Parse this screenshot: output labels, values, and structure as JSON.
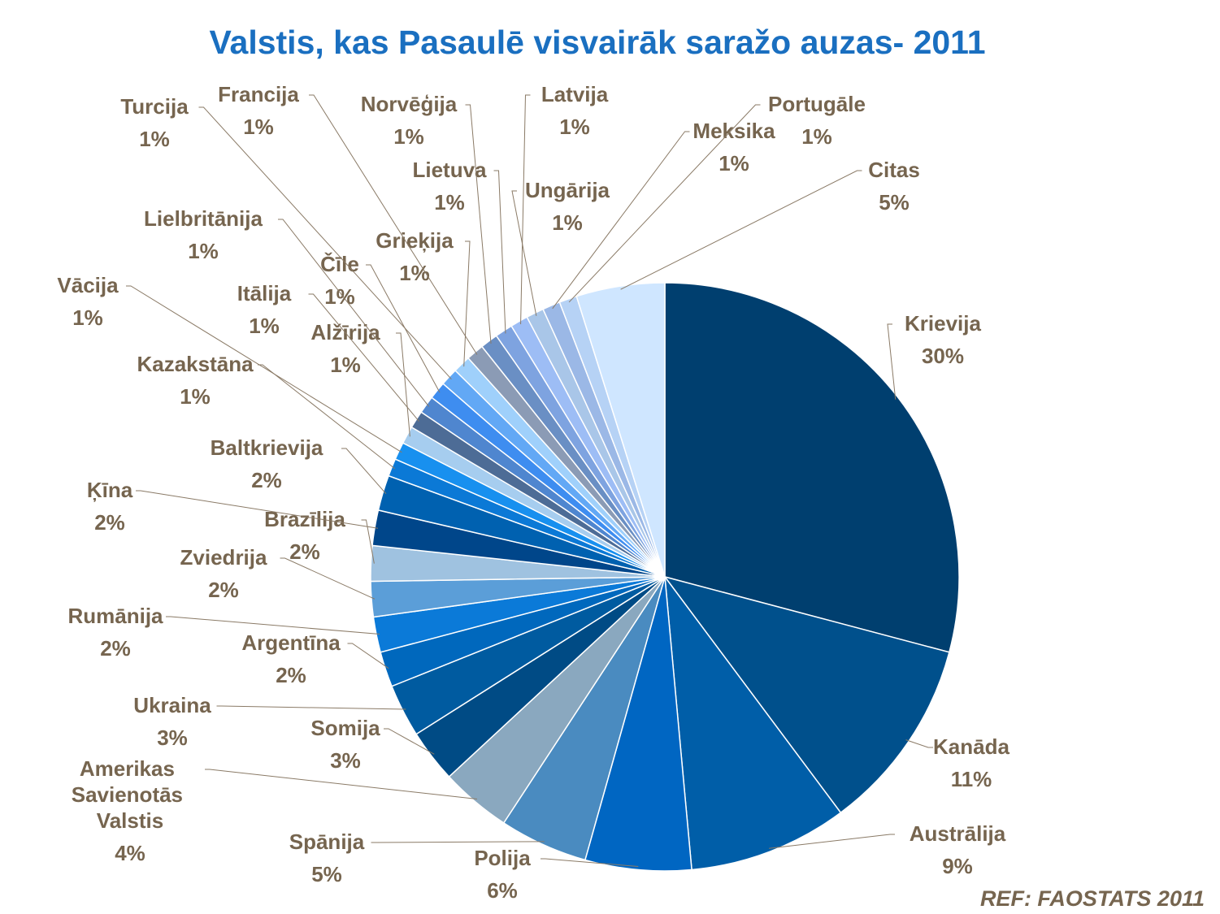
{
  "chart_data": {
    "type": "pie",
    "title": "Valstis, kas Pasaulē visvairāk saražo auzas- 2011",
    "source": "REF: FAOSTATS 2011",
    "categories": [
      "Krievija",
      "Kanāda",
      "Austrālija",
      "Polija",
      "Spānija",
      "Amerikas Savienotās Valstis",
      "Somija",
      "Ukraina",
      "Argentīna",
      "Rumānija",
      "Zviedrija",
      "Brazīlija",
      "Ķīna",
      "Baltkrievija",
      "Kazakstāna",
      "Vācija",
      "Alžīrija",
      "Itālija",
      "Lielbritānija",
      "Čīle",
      "Turcija",
      "Grieķija",
      "Francija",
      "Norvēģija",
      "Lietuva",
      "Latvija",
      "Ungārija",
      "Meksika",
      "Portugāle",
      "Citas"
    ],
    "values": [
      30,
      11,
      9,
      6,
      5,
      4,
      3,
      3,
      2,
      2,
      2,
      2,
      2,
      2,
      1,
      1,
      1,
      1,
      1,
      1,
      1,
      1,
      1,
      1,
      1,
      1,
      1,
      1,
      1,
      5
    ],
    "value_labels": [
      "30%",
      "11%",
      "9%",
      "6%",
      "5%",
      "4%",
      "3%",
      "3%",
      "2%",
      "2%",
      "2%",
      "2%",
      "2%",
      "2%",
      "1%",
      "1%",
      "1%",
      "1%",
      "1%",
      "1%",
      "1%",
      "1%",
      "1%",
      "1%",
      "1%",
      "1%",
      "1%",
      "1%",
      "1%",
      "5%"
    ],
    "colors": [
      "#003f6f",
      "#00508c",
      "#005ea8",
      "#0066c2",
      "#4a8bc0",
      "#8aa8bf",
      "#004b85",
      "#005ba0",
      "#0068bd",
      "#0b7ad8",
      "#5b9ed8",
      "#9fc2e0",
      "#00468a",
      "#0061b0",
      "#0b79d6",
      "#1890ef",
      "#a6cdef",
      "#4d6c96",
      "#4f86cf",
      "#3e8df0",
      "#62a8f5",
      "#9fd0fb",
      "#8b9bb5",
      "#6a8fc4",
      "#7ea3e0",
      "#9dbdf5",
      "#a9c6e8",
      "#9bb8e6",
      "#b6d2f5",
      "#cfe6ff"
    ]
  }
}
